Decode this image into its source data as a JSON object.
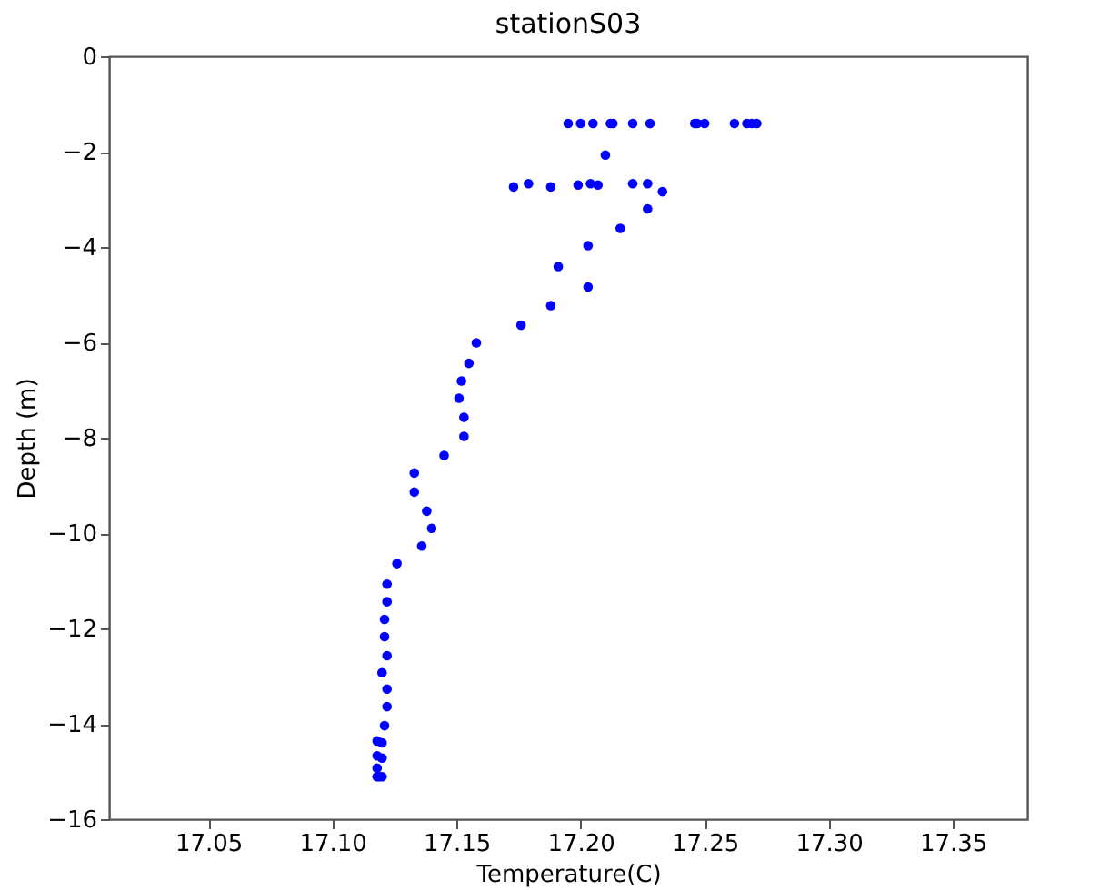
{
  "chart_data": {
    "type": "scatter",
    "title": "stationS03",
    "xlabel": "Temperature(C)",
    "ylabel": "Depth (m)",
    "xlim": [
      17.01,
      17.38
    ],
    "xticks": [
      {
        "value": 17.05,
        "label": "17.05"
      },
      {
        "value": 17.1,
        "label": "17.10"
      },
      {
        "value": 17.15,
        "label": "17.15"
      },
      {
        "value": 17.2,
        "label": "17.20"
      },
      {
        "value": 17.25,
        "label": "17.25"
      },
      {
        "value": 17.3,
        "label": "17.30"
      },
      {
        "value": 17.35,
        "label": "17.35"
      }
    ],
    "ylim": [
      -16,
      0
    ],
    "yticks": [
      -16,
      -14,
      -12,
      -10,
      -8,
      -6,
      -4,
      -2,
      0
    ],
    "grid": false,
    "marker": "circle",
    "series": [
      {
        "color": "#0000ff",
        "x": [
          17.195,
          17.2,
          17.205,
          17.212,
          17.213,
          17.221,
          17.228,
          17.246,
          17.247,
          17.25,
          17.262,
          17.267,
          17.269,
          17.271,
          17.21,
          17.173,
          17.179,
          17.188,
          17.199,
          17.204,
          17.207,
          17.221,
          17.227,
          17.233,
          17.227,
          17.216,
          17.203,
          17.191,
          17.203,
          17.188,
          17.176,
          17.158,
          17.155,
          17.152,
          17.151,
          17.153,
          17.153,
          17.145,
          17.133,
          17.133,
          17.138,
          17.14,
          17.136,
          17.126,
          17.122,
          17.122,
          17.121,
          17.121,
          17.122,
          17.12,
          17.122,
          17.122,
          17.121,
          17.118,
          17.12,
          17.118,
          17.12,
          17.118,
          17.118,
          17.119,
          17.12
        ],
        "values": [
          -1.41,
          -1.41,
          -1.41,
          -1.41,
          -1.41,
          -1.41,
          -1.41,
          -1.41,
          -1.41,
          -1.41,
          -1.41,
          -1.41,
          -1.41,
          -1.41,
          -2.07,
          -2.74,
          -2.67,
          -2.74,
          -2.7,
          -2.67,
          -2.7,
          -2.67,
          -2.67,
          -2.84,
          -3.2,
          -3.61,
          -3.97,
          -4.41,
          -4.84,
          -5.23,
          -5.64,
          -6.01,
          -6.44,
          -6.81,
          -7.17,
          -7.57,
          -7.97,
          -8.37,
          -8.74,
          -9.14,
          -9.54,
          -9.9,
          -10.27,
          -10.64,
          -11.07,
          -11.44,
          -11.81,
          -12.17,
          -12.57,
          -12.93,
          -13.27,
          -13.64,
          -14.04,
          -14.36,
          -14.4,
          -14.67,
          -14.72,
          -14.93,
          -15.11,
          -15.11,
          -15.11
        ]
      }
    ]
  }
}
